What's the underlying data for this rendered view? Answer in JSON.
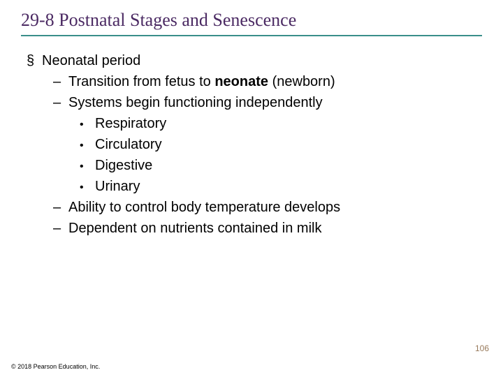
{
  "title": {
    "text": "29-8 Postnatal Stages and Senescence",
    "color": "#4b2a63",
    "fontsize": 26
  },
  "underline_color": "#3a8f8a",
  "content": {
    "fontsize": 20,
    "text_color": "#000000",
    "lvl1_bullet": "§",
    "lvl2_bullet": "–",
    "lvl3_bullet": "•",
    "items": [
      {
        "level": 1,
        "text": "Neonatal period"
      },
      {
        "level": 2,
        "prefix": "Transition from fetus to ",
        "bold": "neonate",
        "suffix": " (newborn)"
      },
      {
        "level": 2,
        "text": "Systems begin functioning independently"
      },
      {
        "level": 3,
        "text": "Respiratory"
      },
      {
        "level": 3,
        "text": "Circulatory"
      },
      {
        "level": 3,
        "text": "Digestive"
      },
      {
        "level": 3,
        "text": "Urinary"
      },
      {
        "level": 2,
        "text": "Ability to control body temperature develops"
      },
      {
        "level": 2,
        "text": "Dependent on nutrients contained in milk"
      }
    ]
  },
  "page_number": "106",
  "page_number_color": "#97795a",
  "copyright": "© 2018 Pearson Education, Inc."
}
